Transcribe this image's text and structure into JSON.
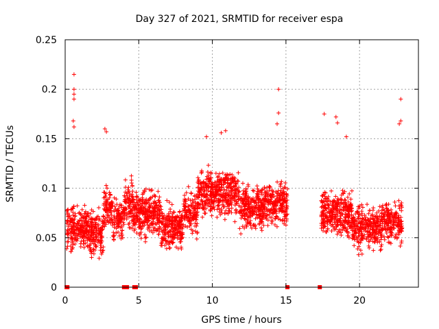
{
  "chart_data": {
    "type": "scatter",
    "title": "Day 327 of 2021, SRMTID for receiver espa",
    "xlabel": "GPS time / hours",
    "ylabel": "SRMTID / TECUs",
    "xlim": [
      0,
      24
    ],
    "ylim": [
      0,
      0.25
    ],
    "xticks": [
      0,
      5,
      10,
      15,
      20
    ],
    "xtick_labels": [
      "0",
      "5",
      "10",
      "15",
      "20"
    ],
    "yticks": [
      0,
      0.05,
      0.1,
      0.15,
      0.2,
      0.25
    ],
    "ytick_labels": [
      "0",
      "0.05",
      "0.1",
      "0.15",
      "0.2",
      "0.25"
    ],
    "grid": true,
    "marker": "+",
    "color": "#ff0000",
    "series": [
      {
        "name": "SRMTID",
        "segments": [
          {
            "x_start": 0.1,
            "x_end": 15.1,
            "typical_range": [
              0.02,
              0.16
            ]
          },
          {
            "x_start": 17.4,
            "x_end": 22.9,
            "typical_range": [
              0.02,
              0.15
            ]
          }
        ],
        "notable_points": [
          {
            "x": 0.6,
            "y": 0.215
          },
          {
            "x": 0.6,
            "y": 0.2
          },
          {
            "x": 0.6,
            "y": 0.195
          },
          {
            "x": 0.6,
            "y": 0.19
          },
          {
            "x": 0.55,
            "y": 0.168
          },
          {
            "x": 0.6,
            "y": 0.162
          },
          {
            "x": 2.7,
            "y": 0.16
          },
          {
            "x": 2.8,
            "y": 0.157
          },
          {
            "x": 14.5,
            "y": 0.2
          },
          {
            "x": 14.5,
            "y": 0.176
          },
          {
            "x": 14.4,
            "y": 0.165
          },
          {
            "x": 17.6,
            "y": 0.175
          },
          {
            "x": 18.4,
            "y": 0.172
          },
          {
            "x": 18.5,
            "y": 0.166
          },
          {
            "x": 19.1,
            "y": 0.152
          },
          {
            "x": 22.8,
            "y": 0.19
          },
          {
            "x": 22.8,
            "y": 0.168
          },
          {
            "x": 22.7,
            "y": 0.165
          },
          {
            "x": 10.9,
            "y": 0.158
          },
          {
            "x": 10.6,
            "y": 0.156
          },
          {
            "x": 9.6,
            "y": 0.152
          }
        ],
        "zero_points_x": [
          0.1,
          0.15,
          4.0,
          4.1,
          4.2,
          4.7,
          4.8,
          15.1,
          17.3
        ]
      }
    ]
  }
}
